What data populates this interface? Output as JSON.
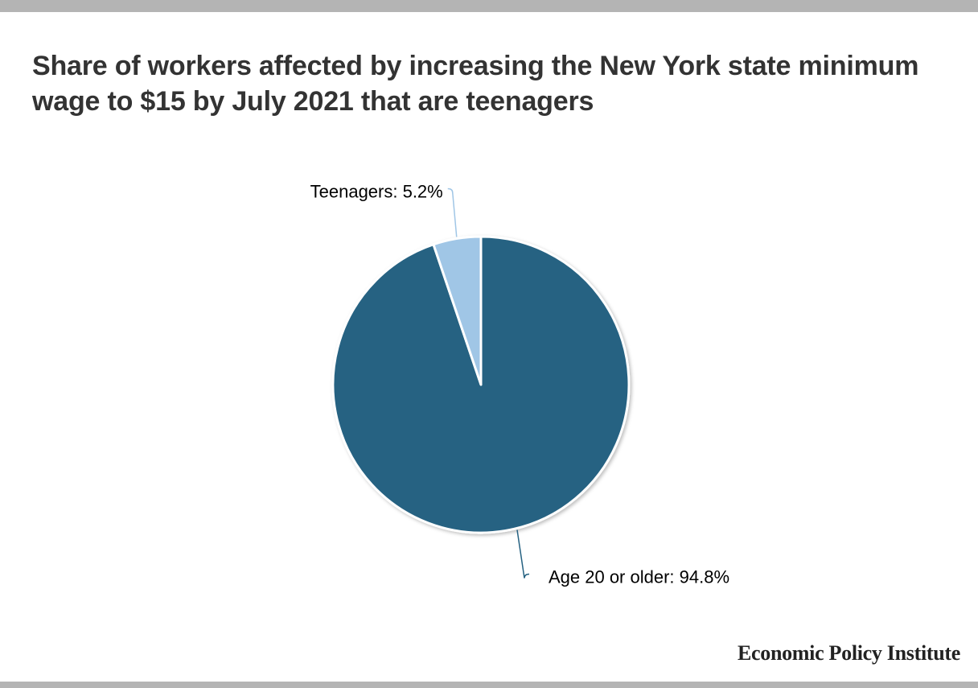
{
  "title": "Share of workers affected by increasing the New York state minimum wage to $15 by July 2021 that are teenagers",
  "source": "Economic Policy Institute",
  "colors": {
    "Age 20 or older": "#266282",
    "Teenagers": "#a0c6e6",
    "title": "#333333",
    "bars": "#b4b4b4"
  },
  "chart_data": {
    "type": "pie",
    "title": "Share of workers affected by increasing the New York state minimum wage to $15 by July 2021 that are teenagers",
    "start": "top",
    "direction": "clockwise",
    "slices": [
      {
        "label": "Age 20 or older",
        "value": 94.8,
        "label_text": "Age 20 or older: 94.8%",
        "color": "#266282"
      },
      {
        "label": "Teenagers",
        "value": 5.2,
        "label_text": "Teenagers: 5.2%",
        "color": "#a0c6e6"
      }
    ]
  }
}
